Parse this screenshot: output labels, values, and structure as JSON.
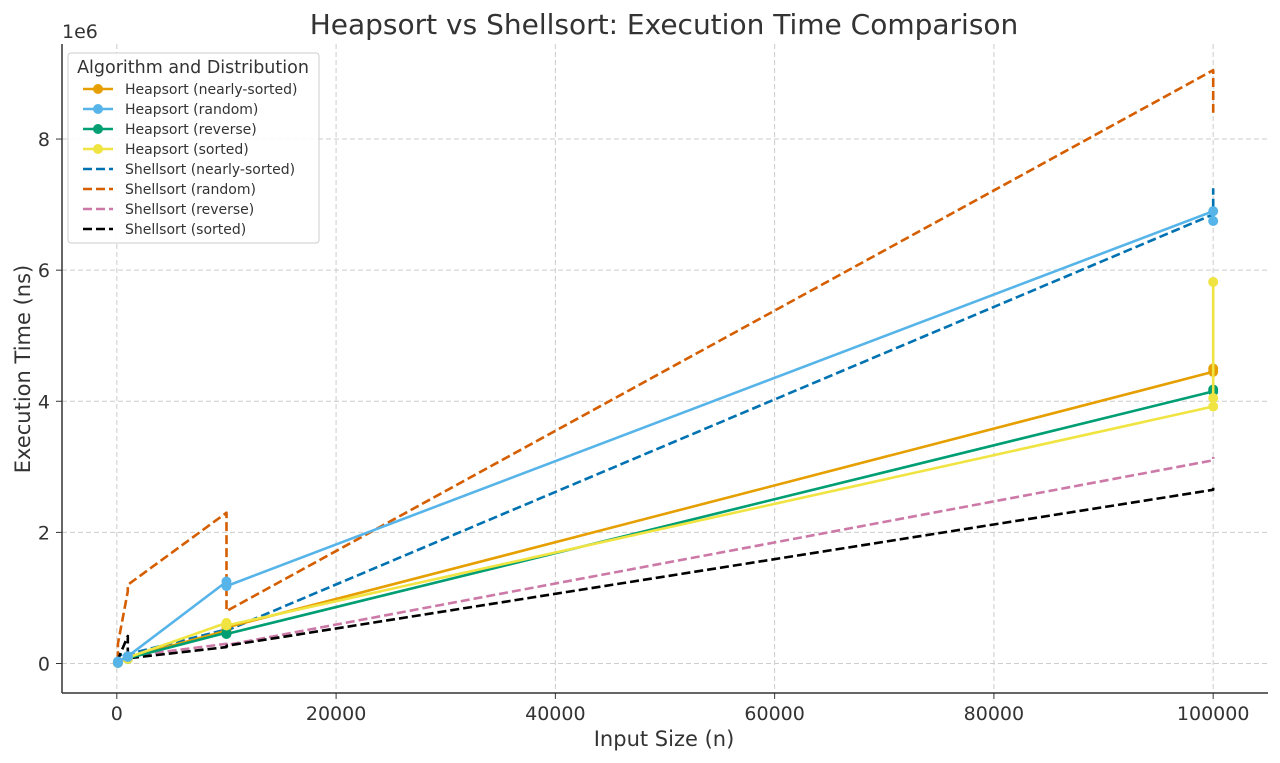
{
  "chart_data": {
    "type": "line",
    "title": "Heapsort vs Shellsort: Execution Time Comparison",
    "xlabel": "Input Size (n)",
    "ylabel": "Execution Time (ns)",
    "y_offset_label": "1e6",
    "xlim": [
      -5000,
      105000
    ],
    "ylim": [
      -0.45,
      9.45
    ],
    "y_scale_note": "values in units of 1e6 ns",
    "x_ticks": [
      0,
      20000,
      40000,
      60000,
      80000,
      100000
    ],
    "y_ticks": [
      0,
      2,
      4,
      6,
      8
    ],
    "grid": true,
    "legend": {
      "title": "Algorithm and Distribution",
      "placement": "top-left"
    },
    "series": [
      {
        "name": "Heapsort (nearly-sorted)",
        "color": "#E69F00",
        "style": "solid",
        "marker": true,
        "points": [
          [
            100,
            0.01
          ],
          [
            100,
            0.02
          ],
          [
            1000,
            0.08
          ],
          [
            1000,
            0.09
          ],
          [
            10000,
            0.5
          ],
          [
            10000,
            0.55
          ],
          [
            100000,
            4.45
          ],
          [
            100000,
            4.5
          ]
        ]
      },
      {
        "name": "Heapsort (random)",
        "color": "#56B4E9",
        "style": "solid",
        "marker": true,
        "points": [
          [
            100,
            0.01
          ],
          [
            100,
            0.03
          ],
          [
            1000,
            0.1
          ],
          [
            1000,
            0.11
          ],
          [
            10000,
            1.25
          ],
          [
            10000,
            1.18
          ],
          [
            100000,
            6.9
          ],
          [
            100000,
            6.75
          ]
        ]
      },
      {
        "name": "Heapsort (reverse)",
        "color": "#009E73",
        "style": "solid",
        "marker": true,
        "points": [
          [
            100,
            0.01
          ],
          [
            100,
            0.02
          ],
          [
            1000,
            0.07
          ],
          [
            1000,
            0.08
          ],
          [
            10000,
            0.47
          ],
          [
            10000,
            0.45
          ],
          [
            100000,
            4.15
          ],
          [
            100000,
            4.18
          ]
        ]
      },
      {
        "name": "Heapsort (sorted)",
        "color": "#F0E442",
        "style": "solid",
        "marker": true,
        "points": [
          [
            100,
            0.01
          ],
          [
            100,
            0.02
          ],
          [
            1000,
            0.07
          ],
          [
            1000,
            0.09
          ],
          [
            10000,
            0.62
          ],
          [
            10000,
            0.58
          ],
          [
            100000,
            3.92
          ],
          [
            100000,
            5.82
          ],
          [
            100000,
            4.05
          ]
        ]
      },
      {
        "name": "Shellsort (nearly-sorted)",
        "color": "#0072B2",
        "style": "dashed",
        "marker": false,
        "points": [
          [
            100,
            0.05
          ],
          [
            100,
            0.12
          ],
          [
            1000,
            0.15
          ],
          [
            1000,
            0.14
          ],
          [
            10000,
            0.52
          ],
          [
            10000,
            0.5
          ],
          [
            100000,
            6.85
          ],
          [
            100000,
            7.25
          ]
        ]
      },
      {
        "name": "Shellsort (random)",
        "color": "#D55E00",
        "style": "dashed",
        "marker": false,
        "points": [
          [
            100,
            0.05
          ],
          [
            100,
            0.3
          ],
          [
            1000,
            1.1
          ],
          [
            1000,
            1.2
          ],
          [
            10000,
            2.3
          ],
          [
            10000,
            0.8
          ],
          [
            100000,
            9.05
          ],
          [
            100000,
            8.4
          ]
        ]
      },
      {
        "name": "Shellsort (reverse)",
        "color": "#CC79A7",
        "style": "dashed",
        "marker": false,
        "points": [
          [
            100,
            0.03
          ],
          [
            100,
            0.04
          ],
          [
            1000,
            0.1
          ],
          [
            1000,
            0.11
          ],
          [
            10000,
            0.3
          ],
          [
            10000,
            0.28
          ],
          [
            100000,
            3.1
          ],
          [
            100000,
            3.15
          ]
        ]
      },
      {
        "name": "Shellsort (sorted)",
        "color": "#000000",
        "style": "dashed",
        "marker": false,
        "points": [
          [
            100,
            0.03
          ],
          [
            100,
            0.06
          ],
          [
            1000,
            0.42
          ],
          [
            1000,
            0.08
          ],
          [
            10000,
            0.25
          ],
          [
            10000,
            0.27
          ],
          [
            100000,
            2.65
          ],
          [
            100000,
            2.68
          ]
        ]
      }
    ]
  }
}
